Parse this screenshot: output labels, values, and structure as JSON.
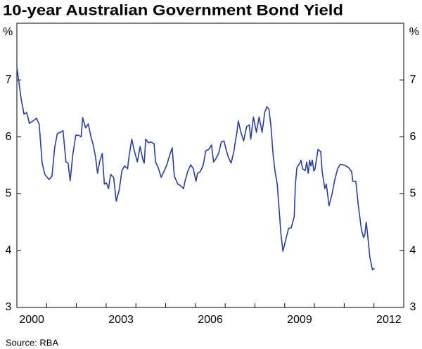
{
  "chart_data": {
    "type": "line",
    "title": "10-year Australian Government Bond Yield",
    "ylabel": "%",
    "y2label": "%",
    "source": "Source: RBA",
    "xlim": [
      2000,
      2013
    ],
    "ylim": [
      3,
      8
    ],
    "yticks": [
      3,
      4,
      5,
      6,
      7
    ],
    "xticks": [
      {
        "value": 2000.5,
        "label": "2000"
      },
      {
        "value": 2003.5,
        "label": "2003"
      },
      {
        "value": 2006.5,
        "label": "2006"
      },
      {
        "value": 2009.5,
        "label": "2009"
      },
      {
        "value": 2012.5,
        "label": "2012"
      }
    ],
    "xminorticks": [
      2001,
      2002,
      2003,
      2004,
      2005,
      2006,
      2007,
      2008,
      2009,
      2010,
      2011,
      2012
    ],
    "grid": false,
    "series": [
      {
        "name": "10-year bond yield",
        "color": "#2a3f9d",
        "x": [
          2000.0,
          2000.14,
          2000.24,
          2000.33,
          2000.42,
          2000.54,
          2000.66,
          2000.75,
          2000.85,
          2000.94,
          2001.08,
          2001.18,
          2001.27,
          2001.36,
          2001.46,
          2001.55,
          2001.65,
          2001.72,
          2001.79,
          2001.88,
          2001.98,
          2002.07,
          2002.16,
          2002.21,
          2002.31,
          2002.4,
          2002.49,
          2002.56,
          2002.64,
          2002.71,
          2002.78,
          2002.87,
          2002.94,
          2003.01,
          2003.08,
          2003.15,
          2003.25,
          2003.34,
          2003.44,
          2003.53,
          2003.62,
          2003.72,
          2003.76,
          2003.86,
          2003.95,
          2004.05,
          2004.14,
          2004.24,
          2004.28,
          2004.33,
          2004.42,
          2004.52,
          2004.61,
          2004.66,
          2004.75,
          2004.85,
          2004.94,
          2005.04,
          2005.13,
          2005.22,
          2005.29,
          2005.41,
          2005.51,
          2005.6,
          2005.65,
          2005.74,
          2005.84,
          2005.93,
          2006.02,
          2006.07,
          2006.16,
          2006.26,
          2006.35,
          2006.45,
          2006.54,
          2006.61,
          2006.68,
          2006.78,
          2006.87,
          2006.96,
          2007.04,
          2007.11,
          2007.2,
          2007.29,
          2007.34,
          2007.39,
          2007.44,
          2007.53,
          2007.62,
          2007.72,
          2007.81,
          2007.86,
          2007.95,
          2008.05,
          2008.14,
          2008.24,
          2008.33,
          2008.4,
          2008.47,
          2008.54,
          2008.61,
          2008.68,
          2008.75,
          2008.8,
          2008.87,
          2008.94,
          2009.04,
          2009.13,
          2009.22,
          2009.32,
          2009.36,
          2009.41,
          2009.51,
          2009.55,
          2009.6,
          2009.69,
          2009.74,
          2009.79,
          2009.84,
          2009.88,
          2009.93,
          2009.98,
          2010.02,
          2010.12,
          2010.21,
          2010.26,
          2010.35,
          2010.4,
          2010.49,
          2010.59,
          2010.68,
          2010.78,
          2010.87,
          2010.96,
          2011.06,
          2011.15,
          2011.25,
          2011.29,
          2011.39,
          2011.48,
          2011.58,
          2011.65,
          2011.69,
          2011.74,
          2011.79,
          2011.86,
          2011.95,
          2012.02
        ],
        "values": [
          7.23,
          6.68,
          6.4,
          6.43,
          6.24,
          6.28,
          6.33,
          6.22,
          5.54,
          5.34,
          5.25,
          5.31,
          5.81,
          6.06,
          6.08,
          6.11,
          5.56,
          5.54,
          5.23,
          5.69,
          6.03,
          6.03,
          6.0,
          6.34,
          6.16,
          6.23,
          6.0,
          5.87,
          5.66,
          5.36,
          5.56,
          5.71,
          5.17,
          5.19,
          5.09,
          5.34,
          5.29,
          4.87,
          5.07,
          5.41,
          5.49,
          5.44,
          5.62,
          5.96,
          5.75,
          5.56,
          5.83,
          5.59,
          5.54,
          5.96,
          5.9,
          5.91,
          5.88,
          5.56,
          5.46,
          5.29,
          5.39,
          5.51,
          5.67,
          5.81,
          5.31,
          5.17,
          5.14,
          5.09,
          5.22,
          5.39,
          5.51,
          5.44,
          5.22,
          5.36,
          5.39,
          5.5,
          5.76,
          5.78,
          5.86,
          5.56,
          5.61,
          5.71,
          5.91,
          5.93,
          5.76,
          5.64,
          5.54,
          5.74,
          5.91,
          6.06,
          6.28,
          6.08,
          5.93,
          6.18,
          6.21,
          5.96,
          6.35,
          6.08,
          6.35,
          6.08,
          6.43,
          6.53,
          6.49,
          6.18,
          5.69,
          5.38,
          5.17,
          4.82,
          4.32,
          3.99,
          4.2,
          4.39,
          4.4,
          4.6,
          5.17,
          5.46,
          5.54,
          5.59,
          5.44,
          5.41,
          5.56,
          5.36,
          5.59,
          5.49,
          5.59,
          5.4,
          5.44,
          5.78,
          5.74,
          5.39,
          5.09,
          5.17,
          4.79,
          4.99,
          5.24,
          5.44,
          5.52,
          5.51,
          5.49,
          5.46,
          5.39,
          5.22,
          5.22,
          4.77,
          4.37,
          4.23,
          4.27,
          4.5,
          4.27,
          3.89,
          3.66,
          3.69
        ]
      }
    ]
  }
}
